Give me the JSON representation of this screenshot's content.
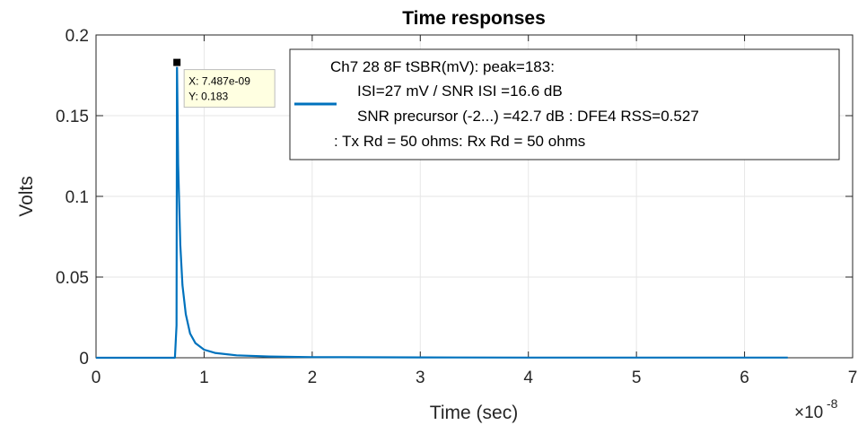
{
  "chart_data": {
    "type": "line",
    "title": "Time responses",
    "xlabel": "Time (sec)",
    "ylabel": "Volts",
    "x_exponent_label": "×10",
    "x_exponent_power": "-8",
    "xlim": [
      0,
      7
    ],
    "ylim": [
      0,
      0.2
    ],
    "x_ticks": [
      "0",
      "1",
      "2",
      "3",
      "4",
      "5",
      "6",
      "7"
    ],
    "y_ticks": [
      "0",
      "0.05",
      "0.1",
      "0.15",
      "0.2"
    ],
    "grid": true,
    "legend_position": "top-right",
    "legend_lines": [
      "Ch7 28 8F tSBR(mV): peak=183:",
      "ISI=27 mV / SNR ISI =16.6 dB",
      "SNR precursor (-2...) =42.7 dB :  DFE4 RSS=0.527",
      ": Tx Rd = 50 ohms: Rx Rd = 50 ohms"
    ],
    "series": [
      {
        "color": "#0072BD",
        "x": [
          0,
          0.5,
          0.73,
          0.745,
          0.749,
          0.7487,
          0.76,
          0.78,
          0.8,
          0.83,
          0.87,
          0.92,
          1.0,
          1.1,
          1.3,
          1.6,
          2.0,
          3.0,
          4.0,
          5.0,
          6.0,
          6.4
        ],
        "y": [
          0,
          0,
          0,
          0.02,
          0.183,
          0.183,
          0.12,
          0.07,
          0.045,
          0.027,
          0.015,
          0.009,
          0.005,
          0.003,
          0.0015,
          0.0008,
          0.0004,
          0.0002,
          0.0001,
          0.0001,
          0.0001,
          0.0001
        ]
      }
    ],
    "datatip": {
      "x_value": 0.7487,
      "y_value": 0.183,
      "x_text": "X: 7.487e-09",
      "y_text": "Y: 0.183"
    }
  }
}
